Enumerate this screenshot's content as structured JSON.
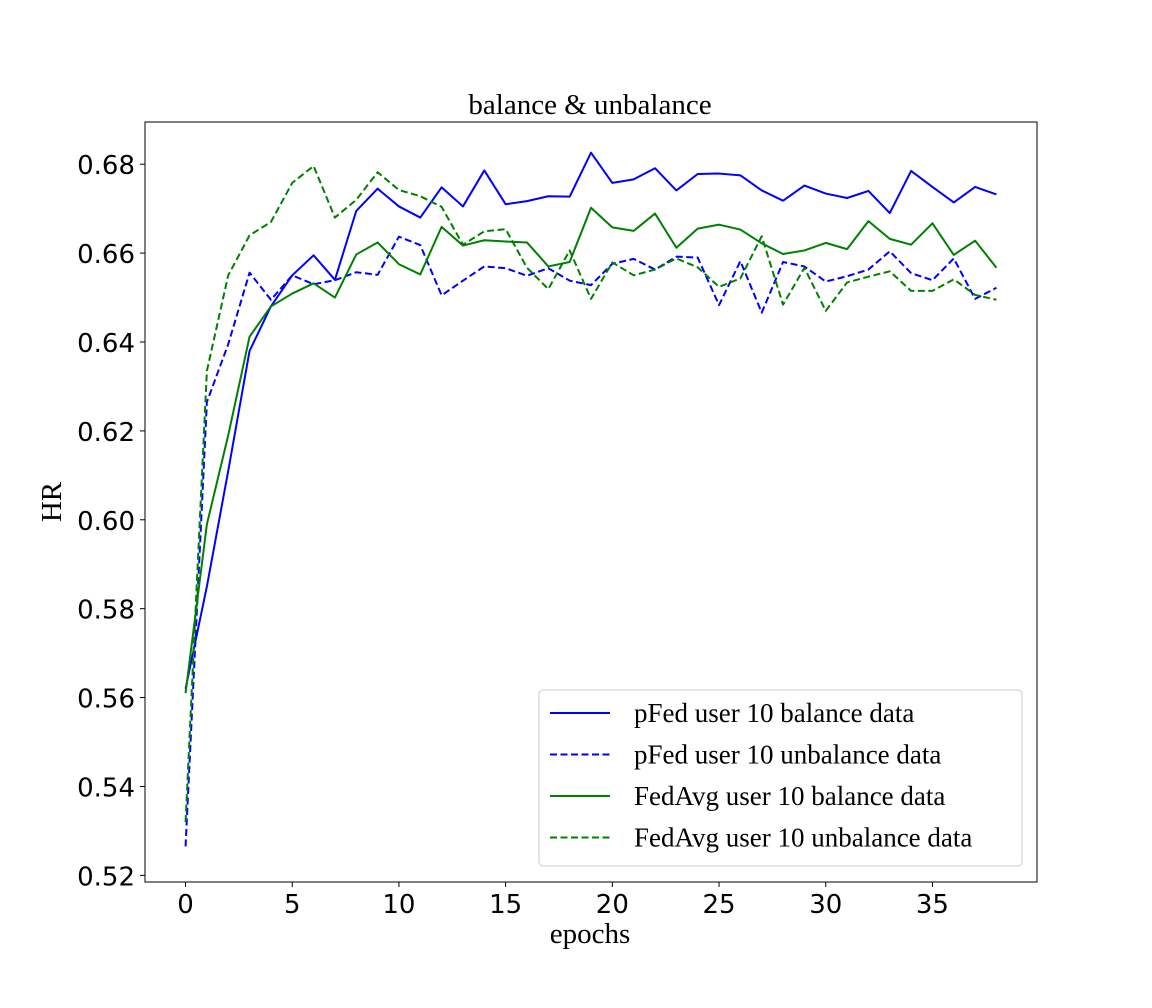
{
  "chart_data": {
    "type": "line",
    "title": "balance & unbalance",
    "xlabel": "epochs",
    "ylabel": "HR",
    "xlim": [
      -1.9,
      39.9
    ],
    "ylim": [
      0.5185,
      0.6895
    ],
    "xticks": [
      0,
      5,
      10,
      15,
      20,
      25,
      30,
      35
    ],
    "yticks": [
      0.52,
      0.54,
      0.56,
      0.58,
      0.6,
      0.62,
      0.64,
      0.66,
      0.68
    ],
    "ytick_labels": [
      "0.52",
      "0.54",
      "0.56",
      "0.58",
      "0.60",
      "0.62",
      "0.64",
      "0.66",
      "0.68"
    ],
    "grid": false,
    "legend_position": "lower-right",
    "series": [
      {
        "name": "pFed user 10 balance data",
        "color": "#0000ff",
        "style": "solid",
        "x": [
          0,
          1,
          2,
          3,
          4,
          5,
          6,
          7,
          8,
          9,
          10,
          11,
          12,
          13,
          14,
          15,
          16,
          17,
          18,
          19,
          20,
          21,
          22,
          23,
          24,
          25,
          26,
          27,
          28,
          29,
          30,
          31,
          32,
          33,
          34,
          35,
          36,
          37,
          38
        ],
        "values": [
          0.562,
          0.585,
          0.611,
          0.638,
          0.648,
          0.655,
          0.6595,
          0.654,
          0.6695,
          0.6745,
          0.6705,
          0.668,
          0.6748,
          0.6705,
          0.6786,
          0.671,
          0.6717,
          0.6728,
          0.6727,
          0.6826,
          0.6758,
          0.6766,
          0.6791,
          0.6741,
          0.6778,
          0.6779,
          0.6775,
          0.6741,
          0.6718,
          0.6752,
          0.6734,
          0.6724,
          0.674,
          0.669,
          0.6785,
          0.6749,
          0.6714,
          0.6749,
          0.6732
        ]
      },
      {
        "name": "pFed user 10 unbalance data",
        "color": "#0000ff",
        "style": "dashed",
        "x": [
          0,
          1,
          2,
          3,
          4,
          5,
          6,
          7,
          8,
          9,
          10,
          11,
          12,
          13,
          14,
          15,
          16,
          17,
          18,
          19,
          20,
          21,
          22,
          23,
          24,
          25,
          26,
          27,
          28,
          29,
          30,
          31,
          32,
          33,
          34,
          35,
          36,
          37,
          38
        ],
        "values": [
          0.5265,
          0.6265,
          0.6395,
          0.6556,
          0.6495,
          0.655,
          0.653,
          0.6539,
          0.6557,
          0.6551,
          0.6637,
          0.6618,
          0.6505,
          0.6538,
          0.657,
          0.6566,
          0.6549,
          0.6566,
          0.6538,
          0.6528,
          0.6576,
          0.6587,
          0.6563,
          0.6592,
          0.659,
          0.6483,
          0.6582,
          0.6466,
          0.658,
          0.657,
          0.6536,
          0.6548,
          0.6563,
          0.6604,
          0.6555,
          0.6539,
          0.6588,
          0.6497,
          0.6522
        ]
      },
      {
        "name": "FedAvg user 10 balance data",
        "color": "#008000",
        "style": "solid",
        "x": [
          0,
          1,
          2,
          3,
          4,
          5,
          6,
          7,
          8,
          9,
          10,
          11,
          12,
          13,
          14,
          15,
          16,
          17,
          18,
          19,
          20,
          21,
          22,
          23,
          24,
          25,
          26,
          27,
          28,
          29,
          30,
          31,
          32,
          33,
          34,
          35,
          36,
          37,
          38
        ],
        "values": [
          0.561,
          0.599,
          0.619,
          0.6412,
          0.648,
          0.6509,
          0.6532,
          0.65,
          0.6597,
          0.6624,
          0.6575,
          0.6552,
          0.6659,
          0.6617,
          0.6629,
          0.6626,
          0.6624,
          0.657,
          0.658,
          0.6702,
          0.6658,
          0.665,
          0.6689,
          0.6612,
          0.6655,
          0.6664,
          0.6653,
          0.6622,
          0.6598,
          0.6606,
          0.6623,
          0.6609,
          0.6672,
          0.6632,
          0.6619,
          0.6667,
          0.6596,
          0.6628,
          0.6567
        ]
      },
      {
        "name": "FedAvg user 10 unbalance data",
        "color": "#008000",
        "style": "dashed",
        "x": [
          0,
          1,
          2,
          3,
          4,
          5,
          6,
          7,
          8,
          9,
          10,
          11,
          12,
          13,
          14,
          15,
          16,
          17,
          18,
          19,
          20,
          21,
          22,
          23,
          24,
          25,
          26,
          27,
          28,
          29,
          30,
          31,
          32,
          33,
          34,
          35,
          36,
          37,
          38
        ],
        "values": [
          0.532,
          0.6335,
          0.655,
          0.664,
          0.667,
          0.6758,
          0.6796,
          0.668,
          0.672,
          0.6782,
          0.6742,
          0.6728,
          0.6704,
          0.6619,
          0.6649,
          0.6654,
          0.6567,
          0.6519,
          0.6606,
          0.6497,
          0.6579,
          0.655,
          0.6563,
          0.6588,
          0.6568,
          0.6524,
          0.6543,
          0.6638,
          0.6484,
          0.6567,
          0.647,
          0.6534,
          0.6547,
          0.6559,
          0.6515,
          0.6515,
          0.6541,
          0.6506,
          0.6495
        ]
      }
    ]
  }
}
